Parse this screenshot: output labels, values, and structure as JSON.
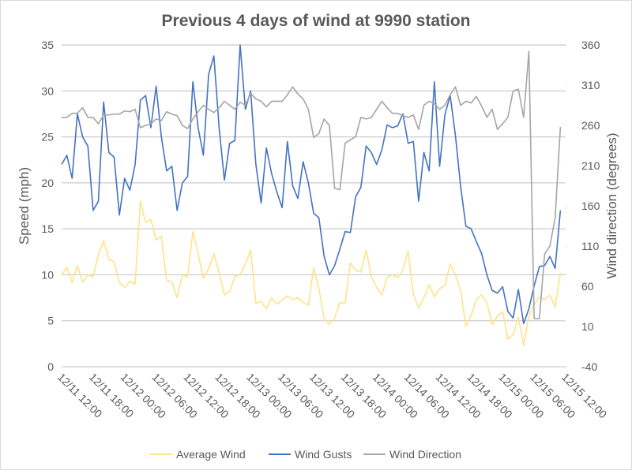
{
  "chart_data": {
    "type": "line",
    "title": "Previous 4 days of wind at 9990 station",
    "y_label": "Speed (mph)",
    "y2_label": "Wind direction (degrees)",
    "categories": [
      "12/11 12:00",
      null,
      null,
      null,
      null,
      null,
      "12/11 18:00",
      null,
      null,
      null,
      null,
      null,
      "12/12 00:00",
      null,
      null,
      null,
      null,
      null,
      "12/12 06:00",
      null,
      null,
      null,
      null,
      null,
      "12/12 12:00",
      null,
      null,
      null,
      null,
      null,
      "12/12 18:00",
      null,
      null,
      null,
      null,
      null,
      "12/13 00:00",
      null,
      null,
      null,
      null,
      null,
      "12/13 06:00",
      null,
      null,
      null,
      null,
      null,
      "12/13 12:00",
      null,
      null,
      null,
      null,
      null,
      "12/13 18:00",
      null,
      null,
      null,
      null,
      null,
      "12/14 00:00",
      null,
      null,
      null,
      null,
      null,
      "12/14 06:00",
      null,
      null,
      null,
      null,
      null,
      "12/14 12:00",
      null,
      null,
      null,
      null,
      null,
      "12/14 18:00",
      null,
      null,
      null,
      null,
      null,
      "12/15 00:00",
      null,
      null,
      null,
      null,
      null,
      "12/15 06:00",
      null,
      null,
      null,
      null,
      null,
      "12/15 12:00"
    ],
    "series": [
      {
        "name": "Average Wind",
        "color": "#ffe38a",
        "values": [
          10,
          10.8,
          9.2,
          11,
          9.2,
          10,
          9.8,
          12.2,
          13.7,
          11.7,
          11.4,
          9.2,
          8.6,
          9.3,
          9,
          18,
          15.7,
          16,
          13.8,
          14.2,
          9.4,
          9.2,
          7.5,
          10,
          9.8,
          14.7,
          12.3,
          9.6,
          10.7,
          12.3,
          10.2,
          7.8,
          8.2,
          9.8,
          10,
          11.2,
          12.7,
          6.9,
          7.1,
          6.3,
          7.5,
          6.8,
          7.3,
          7.7,
          7.3,
          7.5,
          7,
          6.7,
          10.8,
          8.5,
          5.2,
          4.6,
          5.3,
          7,
          6.9,
          11.3,
          10.5,
          10.3,
          12.7,
          9.8,
          8.6,
          7.8,
          9.7,
          10,
          9.7,
          10.5,
          12.6,
          7.9,
          6.4,
          7.5,
          8.9,
          7.6,
          8.5,
          8.8,
          11.2,
          10,
          8.3,
          4.4,
          5.6,
          7.3,
          7.8,
          7,
          4.6,
          5.5,
          6,
          3,
          3.5,
          5.4,
          2.3,
          5.5,
          6.8,
          7.6,
          7.3,
          7.8,
          6.5,
          10.2,
          null
        ]
      },
      {
        "name": "Wind Gusts",
        "color": "#4472c4",
        "values": [
          22,
          23,
          20.5,
          27.5,
          25,
          24,
          17,
          18,
          28.8,
          23.3,
          22.8,
          16.5,
          20.5,
          19.2,
          22,
          29,
          29.5,
          26,
          30.5,
          25,
          21.3,
          21.8,
          17,
          20,
          20.7,
          31,
          26,
          23,
          31.8,
          33.8,
          26,
          20.3,
          24.3,
          24.6,
          35,
          28,
          30,
          22,
          17.8,
          23.8,
          21,
          19,
          17.3,
          24.5,
          19.7,
          18.3,
          22.3,
          20,
          16.7,
          16.2,
          12,
          10,
          11,
          12.8,
          14.7,
          14.6,
          18.5,
          19.5,
          24,
          23.3,
          22,
          23.6,
          26.3,
          26,
          26.2,
          27.5,
          24.3,
          24.5,
          18,
          23.3,
          21.3,
          31,
          21.8,
          27.4,
          29.5,
          25.2,
          19.6,
          15.3,
          15,
          13.6,
          12.3,
          10,
          8.3,
          8,
          8.7,
          6,
          5.3,
          8.4,
          4.7,
          6.3,
          8.8,
          10.9,
          11,
          12,
          10.7,
          17,
          null
        ]
      },
      {
        "name": "Wind Direction",
        "color": "#a5a5a5",
        "axis": "y2",
        "values": [
          270,
          270,
          275,
          275,
          282,
          270,
          270,
          262,
          273,
          273,
          274,
          274,
          278,
          277,
          280,
          257,
          260,
          262,
          268,
          266,
          277,
          274,
          272,
          260,
          256,
          268,
          277,
          285,
          280,
          276,
          282,
          290,
          285,
          280,
          289,
          285,
          300,
          293,
          290,
          283,
          290,
          290,
          290,
          298,
          308,
          299,
          293,
          280,
          245,
          250,
          268,
          260,
          182,
          180,
          238,
          242,
          246,
          270,
          268,
          270,
          280,
          290,
          282,
          275,
          275,
          272,
          270,
          273,
          255,
          285,
          290,
          287,
          280,
          285,
          298,
          308,
          285,
          290,
          288,
          296,
          284,
          270,
          280,
          255,
          262,
          270,
          303,
          305,
          270,
          352,
          20,
          20,
          100,
          110,
          145,
          258,
          null
        ]
      }
    ],
    "ylim": [
      0,
      35
    ],
    "yticks": [
      0,
      5,
      10,
      15,
      20,
      25,
      30,
      35
    ],
    "y2lim": [
      -40,
      360
    ],
    "y2ticks": [
      -40,
      10,
      60,
      110,
      160,
      210,
      260,
      310,
      360
    ],
    "grid": true,
    "legend": "bottom"
  }
}
